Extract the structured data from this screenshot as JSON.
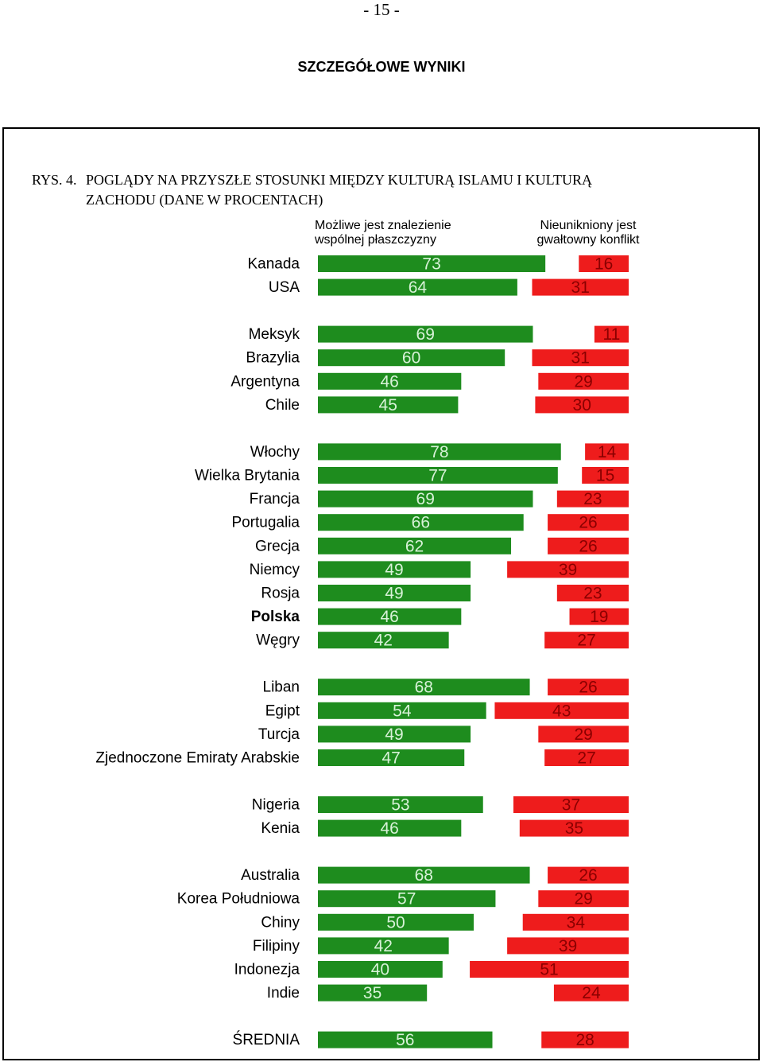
{
  "page": {
    "number": "- 15 -",
    "section_title": "SZCZEGÓŁOWE WYNIKI"
  },
  "figure": {
    "number": "RYS. 4.",
    "title_line1": "POGLĄDY NA PRZYSZŁE STOSUNKI MIĘDZY KULTURĄ ISLAMU I KULTURĄ",
    "title_line2": "ZACHODU (DANE W PROCENTACH)"
  },
  "colors": {
    "green": "#1e8c1e",
    "red": "#ee1c1c",
    "green_text": "#d8f2d8",
    "red_text": "#8a0000"
  },
  "chart_data": {
    "type": "bar",
    "orientation": "horizontal",
    "layout": "diverging back-to-back",
    "series": [
      {
        "name": "Możliwe jest znalezienie wspólnej płaszczyzny",
        "color": "#1e8c1e"
      },
      {
        "name": "Nieunikniony jest gwałtowny konflikt",
        "color": "#ee1c1c"
      }
    ],
    "groups": [
      {
        "rows": [
          {
            "category": "Kanada",
            "common": 73,
            "conflict": 16
          },
          {
            "category": "USA",
            "common": 64,
            "conflict": 31
          }
        ]
      },
      {
        "rows": [
          {
            "category": "Meksyk",
            "common": 69,
            "conflict": 11
          },
          {
            "category": "Brazylia",
            "common": 60,
            "conflict": 31
          },
          {
            "category": "Argentyna",
            "common": 46,
            "conflict": 29
          },
          {
            "category": "Chile",
            "common": 45,
            "conflict": 30
          }
        ]
      },
      {
        "rows": [
          {
            "category": "Włochy",
            "common": 78,
            "conflict": 14
          },
          {
            "category": "Wielka Brytania",
            "common": 77,
            "conflict": 15
          },
          {
            "category": "Francja",
            "common": 69,
            "conflict": 23
          },
          {
            "category": "Portugalia",
            "common": 66,
            "conflict": 26
          },
          {
            "category": "Grecja",
            "common": 62,
            "conflict": 26
          },
          {
            "category": "Niemcy",
            "common": 49,
            "conflict": 39
          },
          {
            "category": "Rosja",
            "common": 49,
            "conflict": 23
          },
          {
            "category": "Polska",
            "common": 46,
            "conflict": 19,
            "bold": true
          },
          {
            "category": "Węgry",
            "common": 42,
            "conflict": 27
          }
        ]
      },
      {
        "rows": [
          {
            "category": "Liban",
            "common": 68,
            "conflict": 26
          },
          {
            "category": "Egipt",
            "common": 54,
            "conflict": 43
          },
          {
            "category": "Turcja",
            "common": 49,
            "conflict": 29
          },
          {
            "category": "Zjednoczone Emiraty Arabskie",
            "common": 47,
            "conflict": 27
          }
        ]
      },
      {
        "rows": [
          {
            "category": "Nigeria",
            "common": 53,
            "conflict": 37
          },
          {
            "category": "Kenia",
            "common": 46,
            "conflict": 35
          }
        ]
      },
      {
        "rows": [
          {
            "category": "Australia",
            "common": 68,
            "conflict": 26
          },
          {
            "category": "Korea Południowa",
            "common": 57,
            "conflict": 29
          },
          {
            "category": "Chiny",
            "common": 50,
            "conflict": 34
          },
          {
            "category": "Filipiny",
            "common": 42,
            "conflict": 39
          },
          {
            "category": "Indonezja",
            "common": 40,
            "conflict": 51
          },
          {
            "category": "Indie",
            "common": 35,
            "conflict": 24
          }
        ]
      },
      {
        "rows": [
          {
            "category": "ŚREDNIA",
            "common": 56,
            "conflict": 28
          }
        ]
      }
    ]
  }
}
